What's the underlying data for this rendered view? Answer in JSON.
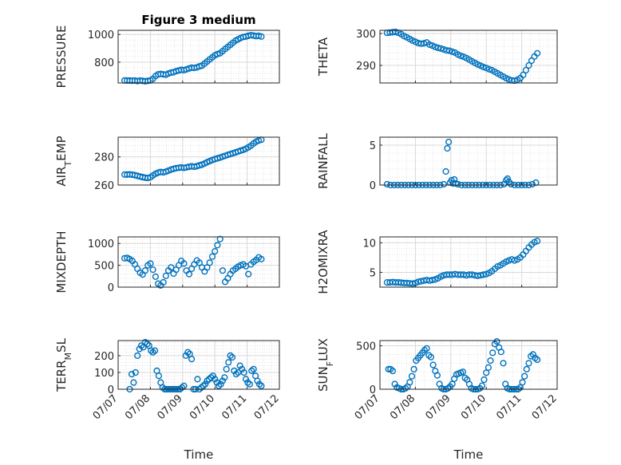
{
  "chart_data": [
    {
      "type": "scatter",
      "title": "Figure 3 medium",
      "ylabel": "PRESSURE",
      "xlabel": "",
      "xlim": [
        "07/07",
        "07/12"
      ],
      "ylim": [
        650,
        1030
      ],
      "yticks": [
        800,
        1000
      ],
      "x_tick_labels": [
        "07/07",
        "07/08",
        "07/09",
        "07/10",
        "07/11",
        "07/12"
      ],
      "show_x_tick_labels": false,
      "x_days": [
        0.2,
        0.28,
        0.36,
        0.44,
        0.52,
        0.6,
        0.68,
        0.76,
        0.84,
        0.92,
        1.0,
        1.08,
        1.16,
        1.24,
        1.32,
        1.4,
        1.48,
        1.56,
        1.64,
        1.72,
        1.8,
        1.88,
        1.96,
        2.04,
        2.12,
        2.2,
        2.28,
        2.36,
        2.44,
        2.52,
        2.6,
        2.68,
        2.76,
        2.84,
        2.92,
        3.0,
        3.08,
        3.16,
        3.24,
        3.32,
        3.4,
        3.48,
        3.56,
        3.64,
        3.72,
        3.8,
        3.88,
        3.96,
        4.04,
        4.12,
        4.2,
        4.28,
        4.36,
        4.44
      ],
      "values": [
        668,
        667,
        667,
        666,
        667,
        664,
        667,
        665,
        662,
        665,
        668,
        680,
        700,
        712,
        715,
        712,
        710,
        718,
        725,
        728,
        735,
        740,
        745,
        742,
        748,
        755,
        760,
        758,
        762,
        770,
        775,
        790,
        805,
        820,
        835,
        850,
        858,
        865,
        880,
        895,
        910,
        925,
        940,
        955,
        965,
        975,
        982,
        985,
        990,
        995,
        992,
        988,
        990,
        985
      ]
    },
    {
      "type": "scatter",
      "title": "",
      "ylabel": "THETA",
      "xlabel": "",
      "xlim": [
        "07/07",
        "07/12"
      ],
      "ylim": [
        284.5,
        301
      ],
      "yticks": [
        290,
        300
      ],
      "x_tick_labels": [
        "07/07",
        "07/08",
        "07/09",
        "07/10",
        "07/11",
        "07/12"
      ],
      "show_x_tick_labels": false,
      "x_days": [
        0.2,
        0.28,
        0.36,
        0.44,
        0.52,
        0.6,
        0.68,
        0.76,
        0.84,
        0.92,
        1.0,
        1.08,
        1.16,
        1.24,
        1.32,
        1.4,
        1.48,
        1.56,
        1.64,
        1.72,
        1.8,
        1.88,
        1.96,
        2.04,
        2.12,
        2.2,
        2.28,
        2.36,
        2.44,
        2.52,
        2.6,
        2.68,
        2.76,
        2.84,
        2.92,
        3.0,
        3.08,
        3.16,
        3.24,
        3.32,
        3.4,
        3.48,
        3.56,
        3.64,
        3.72,
        3.8,
        3.88,
        3.96,
        4.04,
        4.12,
        4.2,
        4.28,
        4.36,
        4.44
      ],
      "values": [
        300.2,
        300.3,
        300.4,
        300.5,
        300.2,
        299.8,
        299.2,
        298.8,
        298.3,
        297.8,
        297.4,
        297.0,
        296.8,
        296.9,
        297.2,
        296.5,
        296.2,
        295.8,
        295.5,
        295.3,
        295.0,
        294.7,
        294.6,
        294.3,
        294.0,
        293.4,
        293.0,
        292.7,
        292.3,
        291.8,
        291.3,
        290.8,
        290.3,
        289.9,
        289.5,
        289.2,
        288.8,
        288.5,
        288.0,
        287.5,
        287.0,
        286.5,
        286.0,
        285.6,
        285.3,
        285.2,
        285.5,
        286.0,
        287.0,
        288.5,
        290.0,
        291.5,
        292.8,
        293.8
      ]
    },
    {
      "type": "scatter",
      "title": "",
      "ylabel": "AIR_TEMP",
      "xlabel": "",
      "xlim": [
        "07/07",
        "07/12"
      ],
      "ylim": [
        260,
        294
      ],
      "yticks": [
        260,
        280
      ],
      "x_tick_labels": [
        "07/07",
        "07/08",
        "07/09",
        "07/10",
        "07/11",
        "07/12"
      ],
      "show_x_tick_labels": false,
      "x_days": [
        0.2,
        0.28,
        0.36,
        0.44,
        0.52,
        0.6,
        0.68,
        0.76,
        0.84,
        0.92,
        1.0,
        1.08,
        1.16,
        1.24,
        1.32,
        1.4,
        1.48,
        1.56,
        1.64,
        1.72,
        1.8,
        1.88,
        1.96,
        2.04,
        2.12,
        2.2,
        2.28,
        2.36,
        2.44,
        2.52,
        2.6,
        2.68,
        2.76,
        2.84,
        2.92,
        3.0,
        3.08,
        3.16,
        3.24,
        3.32,
        3.4,
        3.48,
        3.56,
        3.64,
        3.72,
        3.8,
        3.88,
        3.96,
        4.04,
        4.12,
        4.2,
        4.28,
        4.36,
        4.44
      ],
      "values": [
        267.5,
        267.4,
        267.6,
        267.3,
        267.0,
        266.5,
        266.0,
        265.6,
        265.2,
        265.0,
        265.5,
        266.8,
        268.0,
        268.8,
        269.3,
        269.0,
        269.5,
        270.2,
        271.0,
        271.5,
        272.0,
        272.3,
        272.5,
        272.2,
        272.6,
        273.0,
        273.3,
        273.0,
        273.4,
        274.0,
        274.5,
        275.3,
        276.2,
        277.0,
        277.8,
        278.4,
        279.0,
        279.5,
        280.2,
        280.8,
        281.5,
        282.0,
        282.6,
        283.2,
        283.8,
        284.4,
        285.0,
        285.8,
        286.8,
        288.0,
        289.5,
        290.8,
        291.6,
        292.2
      ]
    },
    {
      "type": "scatter",
      "title": "",
      "ylabel": "RAINFALL",
      "xlabel": "",
      "xlim": [
        "07/07",
        "07/12"
      ],
      "ylim": [
        0,
        6
      ],
      "yticks": [
        0,
        5
      ],
      "x_tick_labels": [
        "07/07",
        "07/08",
        "07/09",
        "07/10",
        "07/11",
        "07/12"
      ],
      "show_x_tick_labels": false,
      "x_days": [
        0.2,
        0.3,
        0.4,
        0.5,
        0.6,
        0.7,
        0.8,
        0.9,
        1.0,
        1.1,
        1.2,
        1.3,
        1.4,
        1.5,
        1.6,
        1.7,
        1.8,
        1.86,
        1.9,
        1.94,
        1.98,
        2.02,
        2.06,
        2.1,
        2.14,
        2.2,
        2.3,
        2.4,
        2.5,
        2.6,
        2.7,
        2.8,
        2.9,
        3.0,
        3.1,
        3.2,
        3.3,
        3.4,
        3.5,
        3.56,
        3.6,
        3.64,
        3.7,
        3.8,
        3.9,
        4.0,
        4.1,
        4.2,
        4.3,
        4.4
      ],
      "values": [
        0.1,
        0.0,
        0.0,
        0.0,
        0.0,
        0.0,
        0.0,
        0.0,
        0.0,
        0.0,
        0.0,
        0.0,
        0.0,
        0.0,
        0.0,
        0.0,
        0.1,
        1.7,
        4.6,
        5.4,
        0.3,
        0.6,
        0.2,
        0.7,
        0.2,
        0.1,
        0.0,
        0.0,
        0.0,
        0.0,
        0.0,
        0.0,
        0.0,
        0.0,
        0.0,
        0.0,
        0.0,
        0.0,
        0.1,
        0.6,
        0.8,
        0.4,
        0.1,
        0.0,
        0.0,
        0.0,
        0.0,
        0.0,
        0.1,
        0.3
      ]
    },
    {
      "type": "scatter",
      "title": "",
      "ylabel": "MIXDEPTH",
      "xlabel": "",
      "xlim": [
        "07/07",
        "07/12"
      ],
      "ylim": [
        0,
        1150
      ],
      "yticks": [
        0,
        500,
        1000
      ],
      "x_tick_labels": [
        "07/07",
        "07/08",
        "07/09",
        "07/10",
        "07/11",
        "07/12"
      ],
      "show_x_tick_labels": false,
      "x_days": [
        0.2,
        0.28,
        0.36,
        0.44,
        0.52,
        0.6,
        0.68,
        0.76,
        0.84,
        0.92,
        1.0,
        1.08,
        1.16,
        1.24,
        1.32,
        1.4,
        1.48,
        1.56,
        1.64,
        1.72,
        1.8,
        1.88,
        1.96,
        2.04,
        2.12,
        2.2,
        2.28,
        2.36,
        2.44,
        2.52,
        2.6,
        2.68,
        2.76,
        2.84,
        2.92,
        3.0,
        3.08,
        3.16,
        3.24,
        3.32,
        3.4,
        3.48,
        3.56,
        3.64,
        3.72,
        3.8,
        3.88,
        3.96,
        4.04,
        4.12,
        4.2,
        4.28,
        4.36,
        4.44
      ],
      "values": [
        660,
        670,
        640,
        600,
        520,
        420,
        330,
        290,
        380,
        500,
        540,
        400,
        240,
        80,
        40,
        110,
        260,
        380,
        450,
        310,
        400,
        500,
        600,
        540,
        380,
        300,
        420,
        520,
        610,
        560,
        450,
        360,
        450,
        560,
        700,
        820,
        960,
        1100,
        380,
        120,
        200,
        300,
        380,
        420,
        470,
        500,
        520,
        480,
        300,
        520,
        580,
        620,
        680,
        640
      ]
    },
    {
      "type": "scatter",
      "title": "",
      "ylabel": "H2OMIXRA",
      "xlabel": "",
      "xlim": [
        "07/07",
        "07/12"
      ],
      "ylim": [
        2.5,
        11
      ],
      "yticks": [
        5,
        10
      ],
      "x_tick_labels": [
        "07/07",
        "07/08",
        "07/09",
        "07/10",
        "07/11",
        "07/12"
      ],
      "show_x_tick_labels": false,
      "x_days": [
        0.2,
        0.28,
        0.36,
        0.44,
        0.52,
        0.6,
        0.68,
        0.76,
        0.84,
        0.92,
        1.0,
        1.08,
        1.16,
        1.24,
        1.32,
        1.4,
        1.48,
        1.56,
        1.64,
        1.72,
        1.8,
        1.88,
        1.96,
        2.04,
        2.12,
        2.2,
        2.28,
        2.36,
        2.44,
        2.52,
        2.6,
        2.68,
        2.76,
        2.84,
        2.92,
        3.0,
        3.08,
        3.16,
        3.24,
        3.32,
        3.4,
        3.48,
        3.56,
        3.64,
        3.72,
        3.8,
        3.88,
        3.96,
        4.04,
        4.12,
        4.2,
        4.28,
        4.36,
        4.44
      ],
      "values": [
        3.3,
        3.3,
        3.35,
        3.3,
        3.3,
        3.25,
        3.2,
        3.2,
        3.15,
        3.1,
        3.2,
        3.4,
        3.5,
        3.6,
        3.7,
        3.6,
        3.7,
        3.8,
        4.0,
        4.3,
        4.5,
        4.6,
        4.6,
        4.6,
        4.7,
        4.6,
        4.6,
        4.6,
        4.5,
        4.6,
        4.6,
        4.5,
        4.4,
        4.5,
        4.6,
        4.7,
        4.9,
        5.2,
        5.6,
        6.0,
        6.2,
        6.5,
        6.8,
        7.0,
        7.2,
        7.0,
        7.2,
        7.5,
        8.0,
        8.6,
        9.2,
        9.7,
        10.1,
        10.3
      ]
    },
    {
      "type": "scatter",
      "title": "",
      "ylabel": "TERR_MSL",
      "xlabel": "Time",
      "xlim": [
        "07/07",
        "07/12"
      ],
      "ylim": [
        0,
        290
      ],
      "yticks": [
        0,
        100,
        200
      ],
      "x_tick_labels": [
        "07/07",
        "07/08",
        "07/09",
        "07/10",
        "07/11",
        "07/12"
      ],
      "show_x_tick_labels": true,
      "x_days": [
        0.36,
        0.42,
        0.48,
        0.54,
        0.6,
        0.66,
        0.72,
        0.78,
        0.84,
        0.9,
        0.96,
        1.02,
        1.08,
        1.14,
        1.2,
        1.26,
        1.32,
        1.38,
        1.44,
        1.5,
        1.56,
        1.62,
        1.68,
        1.74,
        1.8,
        1.86,
        1.92,
        1.98,
        2.04,
        2.1,
        2.16,
        2.22,
        2.28,
        2.34,
        2.4,
        2.46,
        2.52,
        2.58,
        2.64,
        2.7,
        2.76,
        2.82,
        2.88,
        2.94,
        3.0,
        3.06,
        3.12,
        3.18,
        3.24,
        3.3,
        3.36,
        3.42,
        3.48,
        3.54,
        3.6,
        3.66,
        3.72,
        3.78,
        3.84,
        3.9,
        3.96,
        4.02,
        4.08,
        4.14,
        4.2,
        4.26,
        4.32,
        4.38,
        4.44
      ],
      "values": [
        0,
        90,
        40,
        100,
        200,
        240,
        260,
        250,
        280,
        270,
        260,
        230,
        220,
        230,
        110,
        80,
        40,
        10,
        0,
        0,
        0,
        0,
        0,
        0,
        0,
        0,
        0,
        10,
        20,
        200,
        220,
        210,
        180,
        0,
        0,
        60,
        0,
        10,
        20,
        30,
        50,
        60,
        70,
        80,
        60,
        40,
        20,
        30,
        50,
        70,
        120,
        160,
        200,
        190,
        110,
        90,
        100,
        140,
        120,
        100,
        60,
        40,
        30,
        110,
        120,
        80,
        50,
        30,
        20
      ]
    },
    {
      "type": "scatter",
      "title": "",
      "ylabel": "SUN_FLUX",
      "xlabel": "Time",
      "xlim": [
        "07/07",
        "07/12"
      ],
      "ylim": [
        0,
        560
      ],
      "yticks": [
        0,
        500
      ],
      "x_tick_labels": [
        "07/07",
        "07/08",
        "07/09",
        "07/10",
        "07/11",
        "07/12"
      ],
      "show_x_tick_labels": true,
      "x_days": [
        0.24,
        0.3,
        0.36,
        0.42,
        0.48,
        0.54,
        0.6,
        0.66,
        0.72,
        0.78,
        0.84,
        0.9,
        0.96,
        1.02,
        1.08,
        1.14,
        1.2,
        1.26,
        1.32,
        1.38,
        1.44,
        1.5,
        1.56,
        1.62,
        1.68,
        1.74,
        1.8,
        1.86,
        1.92,
        1.98,
        2.04,
        2.1,
        2.16,
        2.22,
        2.28,
        2.34,
        2.4,
        2.46,
        2.52,
        2.58,
        2.64,
        2.7,
        2.76,
        2.82,
        2.88,
        2.94,
        3.0,
        3.06,
        3.12,
        3.18,
        3.24,
        3.3,
        3.36,
        3.42,
        3.48,
        3.54,
        3.6,
        3.66,
        3.72,
        3.78,
        3.84,
        3.9,
        3.96,
        4.02,
        4.08,
        4.14,
        4.2,
        4.26,
        4.32,
        4.38,
        4.44
      ],
      "values": [
        230,
        230,
        210,
        60,
        20,
        10,
        0,
        0,
        10,
        30,
        80,
        150,
        230,
        330,
        360,
        390,
        420,
        450,
        470,
        390,
        370,
        280,
        210,
        160,
        60,
        10,
        0,
        0,
        10,
        30,
        60,
        120,
        170,
        180,
        190,
        200,
        130,
        110,
        60,
        10,
        0,
        0,
        0,
        10,
        40,
        110,
        190,
        250,
        330,
        420,
        520,
        550,
        480,
        430,
        300,
        60,
        10,
        0,
        0,
        0,
        0,
        0,
        20,
        80,
        150,
        230,
        300,
        380,
        400,
        360,
        340
      ]
    }
  ]
}
